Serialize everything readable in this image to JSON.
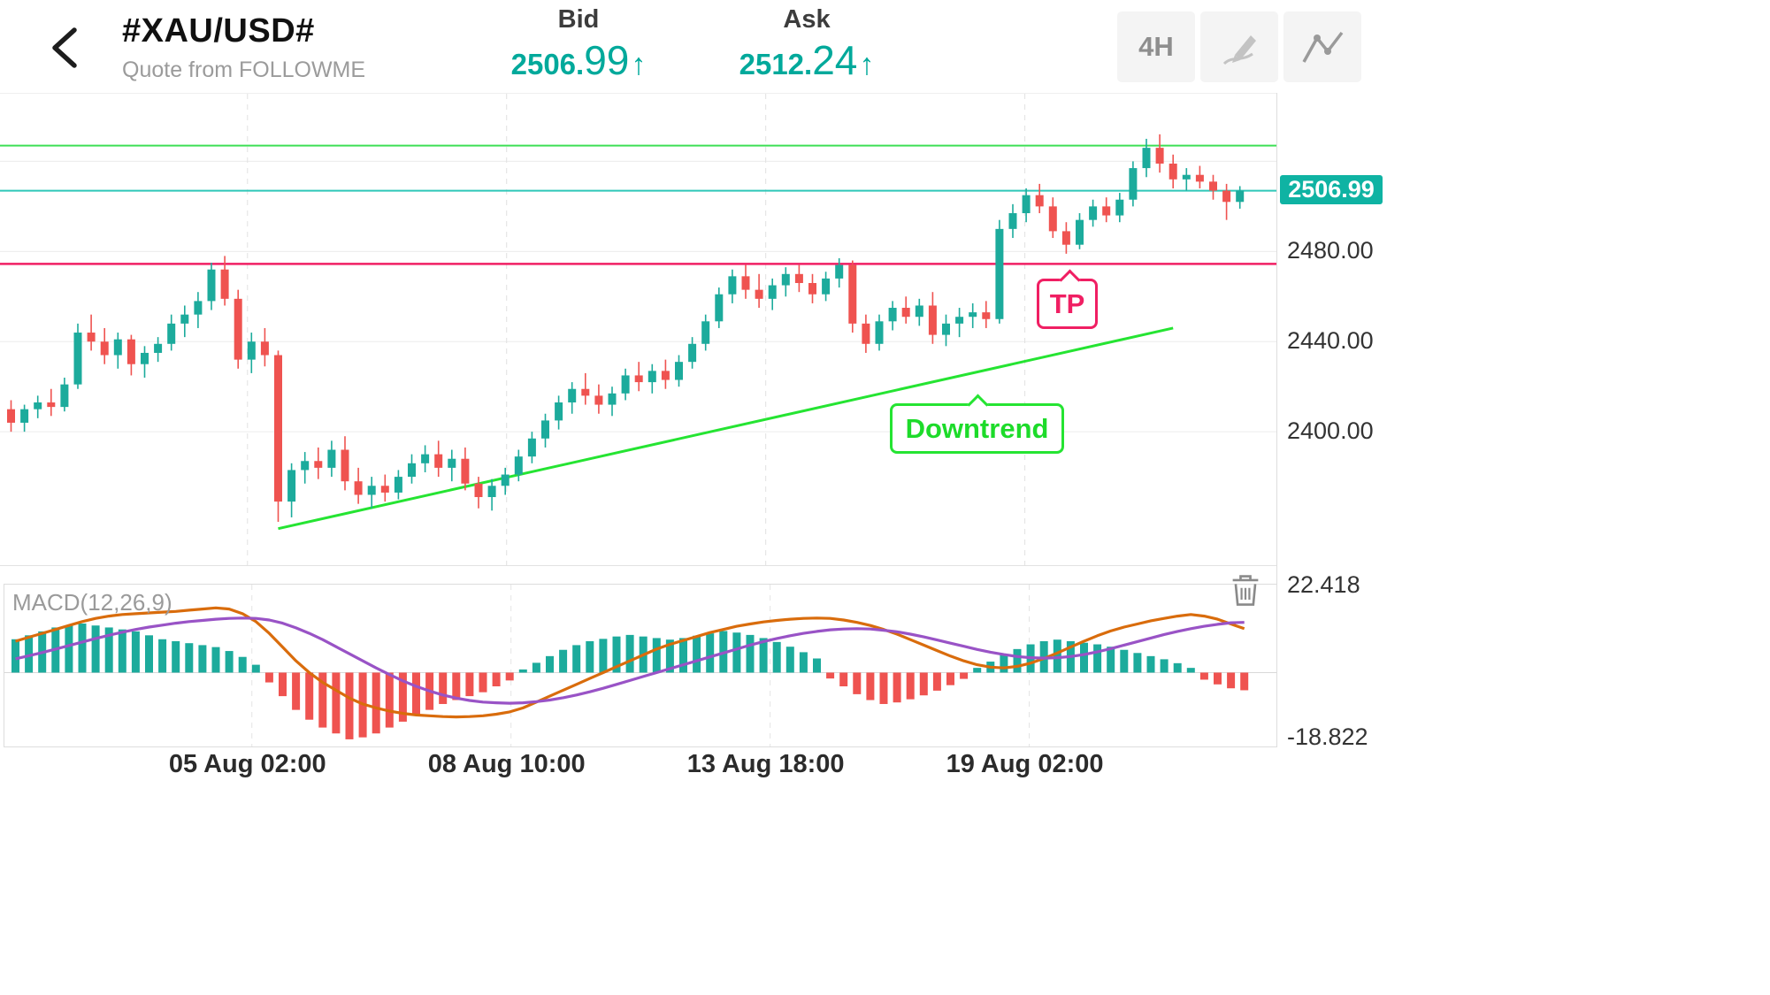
{
  "header": {
    "symbol": "#XAU/USD#",
    "subtitle": "Quote from FOLLOWME",
    "bid": {
      "label": "Bid",
      "value": "2506.99",
      "value_main": "2506.",
      "value_big": "99",
      "direction": "↑"
    },
    "ask": {
      "label": "Ask",
      "value": "2512.24",
      "value_main": "2512.",
      "value_big": "24",
      "direction": "↑"
    },
    "toolbar": {
      "timeframe": "4H",
      "icons": [
        "draw-tool",
        "chart-style"
      ]
    }
  },
  "annotations": {
    "tp": "TP",
    "downtrend": "Downtrend"
  },
  "chart_data": {
    "type": "candlestick",
    "symbol": "#XAU/USD#",
    "timeframe": "4H",
    "legend_position": "none",
    "grid": true,
    "colors": {
      "up": "#1cab9c",
      "down": "#ef5350",
      "green_hline": "#3ddf55",
      "current_hline": "#2fc7b9",
      "current_tag_bg": "#0fb3a3",
      "pink_hline": "#f01f63",
      "trendline": "#25e432",
      "macd": "#d96c0c",
      "signal": "#9953c6",
      "accent_text": "#00a99b"
    },
    "price_axis": {
      "min": 2340,
      "max": 2550,
      "gridlines": [
        2520,
        2480,
        2440,
        2400
      ],
      "tick_labels": [
        {
          "text": "2480.00",
          "price": 2480
        },
        {
          "text": "2440.00",
          "price": 2440
        },
        {
          "text": "2400.00",
          "price": 2400
        }
      ],
      "current_price": 2506.99,
      "current_label": "2506.99"
    },
    "x_axis": {
      "tick_labels": [
        "05 Aug 02:00",
        "08 Aug 10:00",
        "13 Aug 18:00",
        "19 Aug 02:00"
      ],
      "tick_indices": [
        17.7,
        37.1,
        56.5,
        75.9
      ]
    },
    "hlines": [
      {
        "price": 2527.0,
        "color_key": "green_hline",
        "width": 2
      },
      {
        "price": 2506.99,
        "color_key": "current_hline",
        "width": 2
      },
      {
        "price": 2474.5,
        "color_key": "pink_hline",
        "width": 2.5
      }
    ],
    "trendline": {
      "from_index": 20,
      "from_price": 2357,
      "to_index": 87,
      "to_price": 2446
    },
    "candles": [
      [
        2410,
        2414,
        2400,
        2404
      ],
      [
        2404,
        2412,
        2400,
        2410
      ],
      [
        2410,
        2416,
        2406,
        2413
      ],
      [
        2413,
        2419,
        2407,
        2411
      ],
      [
        2411,
        2424,
        2409,
        2421
      ],
      [
        2421,
        2448,
        2419,
        2444
      ],
      [
        2444,
        2452,
        2436,
        2440
      ],
      [
        2440,
        2446,
        2430,
        2434
      ],
      [
        2434,
        2444,
        2428,
        2441
      ],
      [
        2441,
        2443,
        2425,
        2430
      ],
      [
        2430,
        2438,
        2424,
        2435
      ],
      [
        2435,
        2442,
        2431,
        2439
      ],
      [
        2439,
        2452,
        2436,
        2448
      ],
      [
        2448,
        2456,
        2442,
        2452
      ],
      [
        2452,
        2462,
        2446,
        2458
      ],
      [
        2458,
        2475,
        2454,
        2472
      ],
      [
        2472,
        2478,
        2456,
        2459
      ],
      [
        2459,
        2463,
        2428,
        2432
      ],
      [
        2432,
        2444,
        2426,
        2440
      ],
      [
        2440,
        2446,
        2429,
        2434
      ],
      [
        2434,
        2436,
        2360,
        2369
      ],
      [
        2369,
        2386,
        2362,
        2383
      ],
      [
        2383,
        2391,
        2377,
        2387
      ],
      [
        2387,
        2393,
        2379,
        2384
      ],
      [
        2384,
        2396,
        2380,
        2392
      ],
      [
        2392,
        2398,
        2374,
        2378
      ],
      [
        2378,
        2384,
        2368,
        2372
      ],
      [
        2372,
        2380,
        2366,
        2376
      ],
      [
        2376,
        2381,
        2369,
        2373
      ],
      [
        2373,
        2383,
        2370,
        2380
      ],
      [
        2380,
        2390,
        2377,
        2386
      ],
      [
        2386,
        2394,
        2382,
        2390
      ],
      [
        2390,
        2396,
        2380,
        2384
      ],
      [
        2384,
        2392,
        2378,
        2388
      ],
      [
        2388,
        2393,
        2374,
        2377
      ],
      [
        2377,
        2380,
        2366,
        2371
      ],
      [
        2371,
        2379,
        2365,
        2376
      ],
      [
        2376,
        2384,
        2372,
        2381
      ],
      [
        2381,
        2392,
        2378,
        2389
      ],
      [
        2389,
        2400,
        2386,
        2397
      ],
      [
        2397,
        2408,
        2393,
        2405
      ],
      [
        2405,
        2416,
        2401,
        2413
      ],
      [
        2413,
        2422,
        2408,
        2419
      ],
      [
        2419,
        2426,
        2412,
        2416
      ],
      [
        2416,
        2421,
        2408,
        2412
      ],
      [
        2412,
        2420,
        2407,
        2417
      ],
      [
        2417,
        2428,
        2414,
        2425
      ],
      [
        2425,
        2431,
        2418,
        2422
      ],
      [
        2422,
        2430,
        2417,
        2427
      ],
      [
        2427,
        2432,
        2419,
        2423
      ],
      [
        2423,
        2434,
        2420,
        2431
      ],
      [
        2431,
        2442,
        2428,
        2439
      ],
      [
        2439,
        2452,
        2436,
        2449
      ],
      [
        2449,
        2464,
        2446,
        2461
      ],
      [
        2461,
        2472,
        2457,
        2469
      ],
      [
        2469,
        2474,
        2459,
        2463
      ],
      [
        2463,
        2470,
        2455,
        2459
      ],
      [
        2459,
        2468,
        2454,
        2465
      ],
      [
        2465,
        2473,
        2460,
        2470
      ],
      [
        2470,
        2474,
        2462,
        2466
      ],
      [
        2466,
        2470,
        2457,
        2461
      ],
      [
        2461,
        2471,
        2458,
        2468
      ],
      [
        2468,
        2477,
        2464,
        2474
      ],
      [
        2474,
        2476,
        2444,
        2448
      ],
      [
        2448,
        2452,
        2435,
        2439
      ],
      [
        2439,
        2452,
        2436,
        2449
      ],
      [
        2449,
        2458,
        2445,
        2455
      ],
      [
        2455,
        2460,
        2448,
        2451
      ],
      [
        2451,
        2459,
        2447,
        2456
      ],
      [
        2456,
        2462,
        2439,
        2443
      ],
      [
        2443,
        2452,
        2438,
        2448
      ],
      [
        2448,
        2455,
        2442,
        2451
      ],
      [
        2451,
        2457,
        2446,
        2453
      ],
      [
        2453,
        2458,
        2446,
        2450
      ],
      [
        2450,
        2494,
        2448,
        2490
      ],
      [
        2490,
        2501,
        2486,
        2497
      ],
      [
        2497,
        2508,
        2493,
        2505
      ],
      [
        2505,
        2510,
        2497,
        2500
      ],
      [
        2500,
        2504,
        2486,
        2489
      ],
      [
        2489,
        2493,
        2479,
        2483
      ],
      [
        2483,
        2497,
        2481,
        2494
      ],
      [
        2494,
        2503,
        2491,
        2500
      ],
      [
        2500,
        2504,
        2493,
        2496
      ],
      [
        2496,
        2506,
        2493,
        2503
      ],
      [
        2503,
        2520,
        2500,
        2517
      ],
      [
        2517,
        2530,
        2513,
        2526
      ],
      [
        2526,
        2532,
        2515,
        2519
      ],
      [
        2519,
        2523,
        2508,
        2512
      ],
      [
        2512,
        2517,
        2507,
        2514
      ],
      [
        2514,
        2518,
        2508,
        2511
      ],
      [
        2511,
        2514,
        2503,
        2507
      ],
      [
        2507,
        2510,
        2494,
        2502
      ],
      [
        2502,
        2509,
        2499,
        2507
      ]
    ],
    "macd": {
      "label": "MACD(12,26,9)",
      "max": 22.418,
      "min": -18.822,
      "top_label": "22.418",
      "bottom_label": "-18.822",
      "histogram": [
        8.5,
        9.5,
        10.5,
        11.5,
        12,
        12.5,
        12,
        11.5,
        11,
        10.5,
        9.5,
        8.5,
        8,
        7.5,
        7,
        6.5,
        5.5,
        4,
        2,
        -2.5,
        -6,
        -9.5,
        -12,
        -14,
        -15.5,
        -17,
        -16.5,
        -15.5,
        -14,
        -12.5,
        -11,
        -9.5,
        -8,
        -7,
        -6,
        -5,
        -3.5,
        -2,
        0.8,
        2.5,
        4.2,
        5.8,
        7,
        8,
        8.6,
        9.2,
        9.6,
        9.2,
        8.8,
        8.4,
        8.8,
        9.4,
        10,
        10.6,
        10.2,
        9.6,
        8.8,
        7.8,
        6.6,
        5.2,
        3.6,
        -1.5,
        -3.5,
        -5.5,
        -7,
        -8,
        -7.6,
        -6.8,
        -5.8,
        -4.6,
        -3.2,
        -1.6,
        1.2,
        2.8,
        4.5,
        6,
        7.2,
        8,
        8.4,
        8,
        7.6,
        7.2,
        6.6,
        5.8,
        5,
        4.2,
        3.4,
        2.4,
        1.2,
        -1.8,
        -3,
        -4,
        -4.5
      ],
      "macd_line": [
        8,
        9,
        10,
        11,
        12,
        13,
        13.8,
        14.4,
        14.8,
        15,
        15.2,
        15.4,
        15.6,
        15.9,
        16.2,
        16.5,
        16.2,
        15,
        13,
        10,
        6.5,
        3,
        0,
        -2.5,
        -4.5,
        -6.5,
        -8,
        -9,
        -9.8,
        -10.4,
        -10.8,
        -11,
        -11.2,
        -11.3,
        -11.2,
        -11,
        -10.6,
        -10,
        -9,
        -7.5,
        -6,
        -4.5,
        -3,
        -1.5,
        0,
        1.5,
        3,
        4.5,
        6,
        7.2,
        8.2,
        9.2,
        10.2,
        11,
        11.8,
        12.4,
        12.9,
        13.3,
        13.6,
        13.8,
        13.9,
        13.8,
        13.4,
        12.8,
        12,
        11,
        9.8,
        8.4,
        7,
        5.6,
        4.2,
        3,
        2,
        1.4,
        1.2,
        1.6,
        2.4,
        3.6,
        5,
        6.5,
        8,
        9.4,
        10.6,
        11.6,
        12.4,
        13.2,
        13.8,
        14.4,
        14.8,
        14.4,
        13.6,
        12.4,
        11.2
      ],
      "signal_line": [
        3.5,
        4.3,
        5.1,
        6,
        6.9,
        7.8,
        8.7,
        9.5,
        10.3,
        11,
        11.6,
        12.1,
        12.6,
        13,
        13.3,
        13.6,
        13.8,
        13.9,
        13.8,
        13.4,
        12.6,
        11.4,
        10,
        8.4,
        6.6,
        4.8,
        3,
        1.2,
        -0.5,
        -2.1,
        -3.5,
        -4.7,
        -5.7,
        -6.5,
        -7.1,
        -7.5,
        -7.7,
        -7.8,
        -7.7,
        -7.4,
        -7,
        -6.4,
        -5.7,
        -4.9,
        -4,
        -3,
        -2,
        -1,
        0,
        1,
        2,
        3,
        4,
        5,
        6,
        7,
        7.9,
        8.7,
        9.4,
        10,
        10.5,
        10.9,
        11.1,
        11.2,
        11.1,
        10.8,
        10.4,
        9.8,
        9.1,
        8.3,
        7.5,
        6.7,
        5.9,
        5.2,
        4.6,
        4.1,
        3.8,
        3.7,
        3.8,
        4.1,
        4.6,
        5.3,
        6.1,
        7,
        7.9,
        8.8,
        9.7,
        10.5,
        11.2,
        11.8,
        12.3,
        12.7,
        12.8
      ]
    }
  }
}
